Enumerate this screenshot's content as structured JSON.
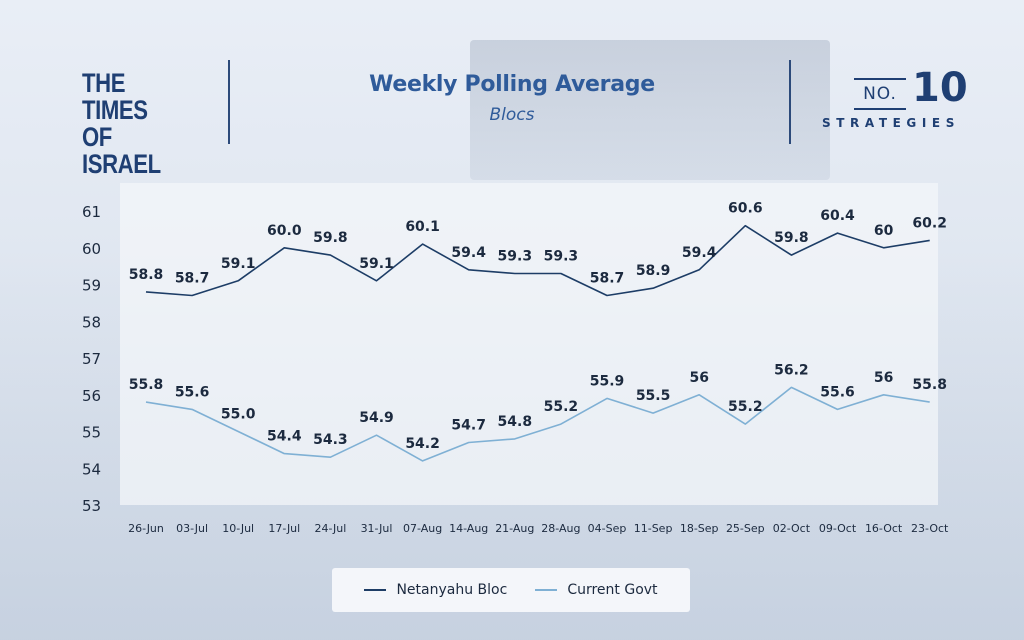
{
  "header": {
    "brand_left_line1": "THE TIMES",
    "brand_left_line2": "OF ISRAEL",
    "brand_right_no": "NO.",
    "brand_right_number": "10",
    "brand_right_word": "STRATEGIES"
  },
  "colors": {
    "brand_navy": "#1f3f73",
    "title_blue": "#2f5b9a",
    "netanyahu": "#1d3d66",
    "current_govt": "#7fb0d4"
  },
  "chart_data": {
    "type": "line",
    "title": "Weekly Polling Average",
    "subtitle": "Blocs",
    "xlabel": "",
    "ylabel": "",
    "ylim": [
      53,
      61
    ],
    "yticks": [
      "53",
      "54",
      "55",
      "56",
      "57",
      "58",
      "59",
      "60",
      "61"
    ],
    "grid": false,
    "legend_position": "bottom-center",
    "categories": [
      "26-Jun",
      "03-Jul",
      "10-Jul",
      "17-Jul",
      "24-Jul",
      "31-Jul",
      "07-Aug",
      "14-Aug",
      "21-Aug",
      "28-Aug",
      "04-Sep",
      "11-Sep",
      "18-Sep",
      "25-Sep",
      "02-Oct",
      "09-Oct",
      "16-Oct",
      "23-Oct"
    ],
    "series": [
      {
        "name": "Netanyahu Bloc",
        "color": "#1d3d66",
        "values": [
          58.8,
          58.7,
          59.1,
          60.0,
          59.8,
          59.1,
          60.1,
          59.4,
          59.3,
          59.3,
          58.7,
          58.9,
          59.4,
          60.6,
          59.8,
          60.4,
          60,
          60.2
        ],
        "labels": [
          "58.8",
          "58.7",
          "59.1",
          "60.0",
          "59.8",
          "59.1",
          "60.1",
          "59.4",
          "59.3",
          "59.3",
          "58.7",
          "58.9",
          "59.4",
          "60.6",
          "59.8",
          "60.4",
          "60",
          "60.2"
        ]
      },
      {
        "name": "Current Govt",
        "color": "#7fb0d4",
        "values": [
          55.8,
          55.6,
          55.0,
          54.4,
          54.3,
          54.9,
          54.2,
          54.7,
          54.8,
          55.2,
          55.9,
          55.5,
          56,
          55.2,
          56.2,
          55.6,
          56,
          55.8
        ],
        "labels": [
          "55.8",
          "55.6",
          "55.0",
          "54.4",
          "54.3",
          "54.9",
          "54.2",
          "54.7",
          "54.8",
          "55.2",
          "55.9",
          "55.5",
          "56",
          "55.2",
          "56.2",
          "55.6",
          "56",
          "55.8"
        ]
      }
    ]
  }
}
